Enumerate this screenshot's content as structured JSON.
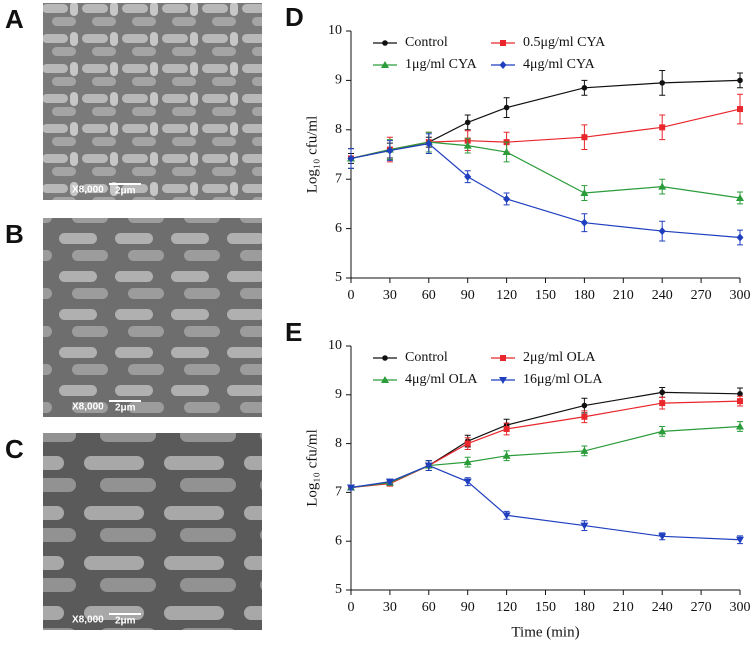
{
  "panels": [
    {
      "label": "A",
      "magnification": "X8,000",
      "scale": "2μm"
    },
    {
      "label": "B",
      "magnification": "X8,000",
      "scale": "2μm"
    },
    {
      "label": "C",
      "magnification": "X8,000",
      "scale": "2μm"
    }
  ],
  "chart_data": [
    {
      "type": "line",
      "panel_label": "D",
      "ylabel": "Log₁₀ cfu/ml",
      "x": [
        0,
        30,
        60,
        90,
        120,
        180,
        240,
        300
      ],
      "xlim": [
        0,
        300
      ],
      "xticks": [
        0,
        30,
        60,
        90,
        120,
        150,
        180,
        210,
        240,
        270,
        300
      ],
      "ylim": [
        5,
        10
      ],
      "yticks": [
        5,
        6,
        7,
        8,
        9,
        10
      ],
      "legend": "upper left",
      "series": [
        {
          "name": "Control",
          "color": "#111111",
          "marker": "circle",
          "values": [
            7.42,
            7.58,
            7.75,
            8.15,
            8.45,
            8.85,
            8.95,
            9.0
          ],
          "errors": [
            0.1,
            0.15,
            0.1,
            0.15,
            0.2,
            0.15,
            0.25,
            0.15
          ]
        },
        {
          "name": "0.5μg/ml CYA",
          "color": "#e8262b",
          "marker": "square",
          "values": [
            7.42,
            7.6,
            7.75,
            7.78,
            7.75,
            7.85,
            8.05,
            8.42
          ],
          "errors": [
            0.2,
            0.25,
            0.2,
            0.2,
            0.2,
            0.25,
            0.25,
            0.3
          ]
        },
        {
          "name": "1μg/ml CYA",
          "color": "#2a9c3a",
          "marker": "triangle",
          "values": [
            7.42,
            7.6,
            7.75,
            7.68,
            7.55,
            6.72,
            6.85,
            6.62
          ],
          "errors": [
            0.2,
            0.2,
            0.2,
            0.15,
            0.2,
            0.15,
            0.15,
            0.12
          ]
        },
        {
          "name": "4μg/ml CYA",
          "color": "#1f3fbf",
          "marker": "diamond",
          "values": [
            7.42,
            7.58,
            7.72,
            7.05,
            6.6,
            6.12,
            5.95,
            5.82
          ],
          "errors": [
            0.2,
            0.2,
            0.2,
            0.12,
            0.12,
            0.18,
            0.2,
            0.15
          ]
        }
      ]
    },
    {
      "type": "line",
      "panel_label": "E",
      "ylabel": "Log₁₀ cfu/ml",
      "xlabel": "Time (min)",
      "x": [
        0,
        30,
        60,
        90,
        120,
        180,
        240,
        300
      ],
      "xlim": [
        0,
        300
      ],
      "xticks": [
        0,
        30,
        60,
        90,
        120,
        150,
        180,
        210,
        240,
        270,
        300
      ],
      "ylim": [
        5,
        10
      ],
      "yticks": [
        5,
        6,
        7,
        8,
        9,
        10
      ],
      "legend": "upper left",
      "series": [
        {
          "name": "Control",
          "color": "#111111",
          "marker": "circle",
          "values": [
            7.1,
            7.2,
            7.55,
            8.05,
            8.38,
            8.78,
            9.05,
            9.02
          ],
          "errors": [
            0.05,
            0.05,
            0.1,
            0.12,
            0.12,
            0.15,
            0.1,
            0.12
          ]
        },
        {
          "name": "2μg/ml OLA",
          "color": "#e8262b",
          "marker": "square",
          "values": [
            7.1,
            7.18,
            7.55,
            8.0,
            8.3,
            8.55,
            8.83,
            8.87
          ],
          "errors": [
            0.05,
            0.05,
            0.1,
            0.12,
            0.12,
            0.12,
            0.12,
            0.1
          ]
        },
        {
          "name": "4μg/ml OLA",
          "color": "#2a9c3a",
          "marker": "triangle",
          "values": [
            7.1,
            7.2,
            7.55,
            7.62,
            7.75,
            7.85,
            8.25,
            8.35
          ],
          "errors": [
            0.05,
            0.05,
            0.1,
            0.1,
            0.1,
            0.1,
            0.1,
            0.1
          ]
        },
        {
          "name": "16μg/ml OLA",
          "color": "#1f3fbf",
          "marker": "triangle-down",
          "values": [
            7.1,
            7.22,
            7.55,
            7.22,
            6.53,
            6.32,
            6.1,
            6.03
          ],
          "errors": [
            0.05,
            0.05,
            0.1,
            0.08,
            0.08,
            0.1,
            0.07,
            0.08
          ]
        }
      ]
    }
  ]
}
